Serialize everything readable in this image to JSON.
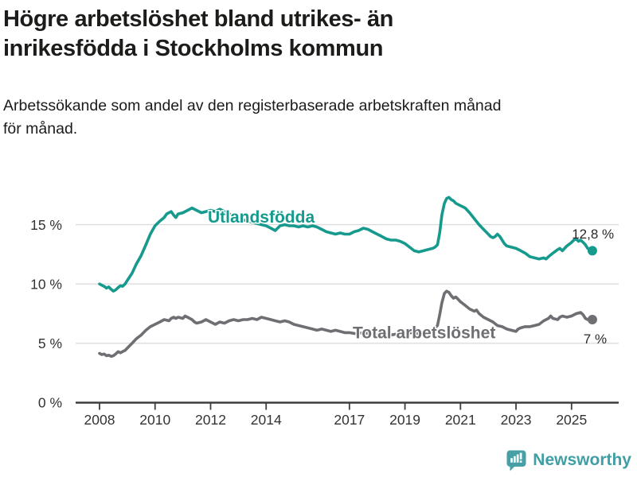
{
  "header": {
    "title_line1": "Högre arbetslöshet bland utrikes- än",
    "title_line2": "inrikesfödda i Stockholms kommun",
    "subtitle_line1": "Arbetssökande som andel av den registerbaserade arbetskraften månad",
    "subtitle_line2": "för månad."
  },
  "footer": {
    "brand": "Newsworthy",
    "logo_icon": "bar-chart-speech-bubble-icon",
    "brand_color": "#3f9fa4"
  },
  "colors": {
    "utlandsfodda": "#169a8d",
    "total": "#6e6e73",
    "grid": "#dcdcdc",
    "axis": "#3d3d3d",
    "tick_text": "#333333",
    "value_text": "#2a2a2a",
    "background": "#ffffff"
  },
  "chart_data": {
    "type": "line",
    "title": "Högre arbetslöshet bland utrikes- än inrikesfödda i Stockholms kommun",
    "subtitle": "Arbetssökande som andel av den registerbaserade arbetskraften månad för månad.",
    "xlabel": "",
    "ylabel": "%",
    "grid": true,
    "legend_position": "inline-labels",
    "xlim": [
      2007.1,
      2026.7
    ],
    "ylim": [
      0,
      18
    ],
    "yticks": [
      {
        "value": 0,
        "label": "0 %"
      },
      {
        "value": 5,
        "label": "5 %"
      },
      {
        "value": 10,
        "label": "10 %"
      },
      {
        "value": 15,
        "label": "15 %"
      }
    ],
    "xticks": [
      {
        "value": 2008,
        "label": "2008"
      },
      {
        "value": 2010,
        "label": "2010"
      },
      {
        "value": 2012,
        "label": "2012"
      },
      {
        "value": 2014,
        "label": "2014"
      },
      {
        "value": 2017,
        "label": "2017"
      },
      {
        "value": 2019,
        "label": "2019"
      },
      {
        "value": 2021,
        "label": "2021"
      },
      {
        "value": 2023,
        "label": "2023"
      },
      {
        "value": 2025,
        "label": "2025"
      }
    ],
    "series": [
      {
        "name": "Utlandsfödda",
        "color": "#169a8d",
        "end_dot": true,
        "end_value_label": {
          "text": "12,8 %",
          "year": 2026.53,
          "pct": 13.83,
          "anchor": "end"
        },
        "name_label": {
          "year": 2011.9,
          "pct": 15.17,
          "anchor": "start"
        },
        "points": [
          [
            2008.0,
            10.0
          ],
          [
            2008.08,
            9.9
          ],
          [
            2008.17,
            9.8
          ],
          [
            2008.25,
            9.65
          ],
          [
            2008.33,
            9.75
          ],
          [
            2008.42,
            9.55
          ],
          [
            2008.5,
            9.4
          ],
          [
            2008.58,
            9.5
          ],
          [
            2008.67,
            9.7
          ],
          [
            2008.75,
            9.85
          ],
          [
            2008.83,
            9.8
          ],
          [
            2008.92,
            10.0
          ],
          [
            2009.0,
            10.3
          ],
          [
            2009.17,
            10.9
          ],
          [
            2009.33,
            11.7
          ],
          [
            2009.5,
            12.4
          ],
          [
            2009.67,
            13.3
          ],
          [
            2009.83,
            14.2
          ],
          [
            2010.0,
            14.9
          ],
          [
            2010.17,
            15.3
          ],
          [
            2010.33,
            15.6
          ],
          [
            2010.42,
            15.9
          ],
          [
            2010.5,
            16.0
          ],
          [
            2010.58,
            16.1
          ],
          [
            2010.67,
            15.8
          ],
          [
            2010.75,
            15.6
          ],
          [
            2010.83,
            15.9
          ],
          [
            2011.0,
            16.0
          ],
          [
            2011.17,
            16.2
          ],
          [
            2011.33,
            16.4
          ],
          [
            2011.5,
            16.2
          ],
          [
            2011.67,
            16.0
          ],
          [
            2011.83,
            16.1
          ],
          [
            2012.0,
            16.2
          ],
          [
            2012.17,
            16.1
          ],
          [
            2012.33,
            16.3
          ],
          [
            2012.5,
            16.1
          ],
          [
            2012.67,
            15.9
          ],
          [
            2012.83,
            15.7
          ],
          [
            2013.0,
            15.6
          ],
          [
            2013.17,
            15.4
          ],
          [
            2013.33,
            15.3
          ],
          [
            2013.5,
            15.2
          ],
          [
            2013.67,
            15.1
          ],
          [
            2013.83,
            15.0
          ],
          [
            2014.0,
            14.9
          ],
          [
            2014.17,
            14.7
          ],
          [
            2014.33,
            14.5
          ],
          [
            2014.5,
            14.9
          ],
          [
            2014.67,
            15.0
          ],
          [
            2014.83,
            14.9
          ],
          [
            2015.0,
            14.9
          ],
          [
            2015.17,
            14.8
          ],
          [
            2015.33,
            14.9
          ],
          [
            2015.5,
            14.8
          ],
          [
            2015.67,
            14.9
          ],
          [
            2015.83,
            14.8
          ],
          [
            2016.0,
            14.6
          ],
          [
            2016.17,
            14.4
          ],
          [
            2016.33,
            14.3
          ],
          [
            2016.5,
            14.2
          ],
          [
            2016.67,
            14.3
          ],
          [
            2016.83,
            14.2
          ],
          [
            2017.0,
            14.2
          ],
          [
            2017.17,
            14.4
          ],
          [
            2017.33,
            14.5
          ],
          [
            2017.5,
            14.7
          ],
          [
            2017.67,
            14.6
          ],
          [
            2017.83,
            14.4
          ],
          [
            2018.0,
            14.2
          ],
          [
            2018.17,
            14.0
          ],
          [
            2018.33,
            13.8
          ],
          [
            2018.5,
            13.7
          ],
          [
            2018.67,
            13.7
          ],
          [
            2018.83,
            13.6
          ],
          [
            2019.0,
            13.4
          ],
          [
            2019.17,
            13.1
          ],
          [
            2019.33,
            12.8
          ],
          [
            2019.5,
            12.7
          ],
          [
            2019.67,
            12.8
          ],
          [
            2019.83,
            12.9
          ],
          [
            2020.0,
            13.0
          ],
          [
            2020.08,
            13.1
          ],
          [
            2020.17,
            13.3
          ],
          [
            2020.25,
            14.3
          ],
          [
            2020.33,
            15.8
          ],
          [
            2020.42,
            16.8
          ],
          [
            2020.5,
            17.2
          ],
          [
            2020.58,
            17.3
          ],
          [
            2020.67,
            17.1
          ],
          [
            2020.75,
            17.0
          ],
          [
            2020.83,
            16.8
          ],
          [
            2021.0,
            16.6
          ],
          [
            2021.17,
            16.4
          ],
          [
            2021.33,
            16.0
          ],
          [
            2021.5,
            15.5
          ],
          [
            2021.67,
            15.0
          ],
          [
            2021.83,
            14.6
          ],
          [
            2022.0,
            14.2
          ],
          [
            2022.08,
            14.0
          ],
          [
            2022.17,
            13.9
          ],
          [
            2022.25,
            14.0
          ],
          [
            2022.33,
            14.2
          ],
          [
            2022.42,
            14.0
          ],
          [
            2022.5,
            13.7
          ],
          [
            2022.58,
            13.4
          ],
          [
            2022.67,
            13.2
          ],
          [
            2022.83,
            13.1
          ],
          [
            2023.0,
            13.0
          ],
          [
            2023.17,
            12.8
          ],
          [
            2023.33,
            12.6
          ],
          [
            2023.5,
            12.3
          ],
          [
            2023.67,
            12.2
          ],
          [
            2023.83,
            12.1
          ],
          [
            2024.0,
            12.2
          ],
          [
            2024.08,
            12.1
          ],
          [
            2024.17,
            12.3
          ],
          [
            2024.33,
            12.6
          ],
          [
            2024.5,
            12.9
          ],
          [
            2024.58,
            13.0
          ],
          [
            2024.67,
            12.8
          ],
          [
            2024.75,
            13.0
          ],
          [
            2024.83,
            13.2
          ],
          [
            2025.0,
            13.5
          ],
          [
            2025.08,
            13.7
          ],
          [
            2025.17,
            13.8
          ],
          [
            2025.25,
            13.6
          ],
          [
            2025.33,
            13.7
          ],
          [
            2025.42,
            13.5
          ],
          [
            2025.5,
            13.3
          ],
          [
            2025.58,
            13.0
          ],
          [
            2025.75,
            12.8
          ]
        ]
      },
      {
        "name": "Total arbetslöshet",
        "color": "#6e6e73",
        "end_dot": true,
        "end_value_label": {
          "text": "7 %",
          "year": 2026.27,
          "pct": 5.0,
          "anchor": "end"
        },
        "name_label": {
          "year": 2017.12,
          "pct": 5.43,
          "anchor": "start"
        },
        "points": [
          [
            2008.0,
            4.15
          ],
          [
            2008.08,
            4.05
          ],
          [
            2008.17,
            4.1
          ],
          [
            2008.25,
            3.95
          ],
          [
            2008.33,
            4.0
          ],
          [
            2008.42,
            3.9
          ],
          [
            2008.5,
            3.95
          ],
          [
            2008.58,
            4.1
          ],
          [
            2008.67,
            4.3
          ],
          [
            2008.75,
            4.2
          ],
          [
            2008.83,
            4.3
          ],
          [
            2008.92,
            4.4
          ],
          [
            2009.0,
            4.6
          ],
          [
            2009.17,
            5.0
          ],
          [
            2009.33,
            5.4
          ],
          [
            2009.5,
            5.7
          ],
          [
            2009.67,
            6.1
          ],
          [
            2009.83,
            6.4
          ],
          [
            2010.0,
            6.6
          ],
          [
            2010.17,
            6.8
          ],
          [
            2010.33,
            7.0
          ],
          [
            2010.5,
            6.9
          ],
          [
            2010.58,
            7.1
          ],
          [
            2010.67,
            7.2
          ],
          [
            2010.75,
            7.1
          ],
          [
            2010.83,
            7.2
          ],
          [
            2011.0,
            7.1
          ],
          [
            2011.08,
            7.3
          ],
          [
            2011.17,
            7.2
          ],
          [
            2011.33,
            7.0
          ],
          [
            2011.42,
            6.8
          ],
          [
            2011.5,
            6.7
          ],
          [
            2011.67,
            6.8
          ],
          [
            2011.83,
            7.0
          ],
          [
            2012.0,
            6.8
          ],
          [
            2012.17,
            6.6
          ],
          [
            2012.33,
            6.8
          ],
          [
            2012.5,
            6.7
          ],
          [
            2012.67,
            6.9
          ],
          [
            2012.83,
            7.0
          ],
          [
            2013.0,
            6.9
          ],
          [
            2013.17,
            7.0
          ],
          [
            2013.33,
            7.0
          ],
          [
            2013.5,
            7.1
          ],
          [
            2013.67,
            7.0
          ],
          [
            2013.83,
            7.2
          ],
          [
            2014.0,
            7.1
          ],
          [
            2014.17,
            7.0
          ],
          [
            2014.33,
            6.9
          ],
          [
            2014.5,
            6.8
          ],
          [
            2014.67,
            6.9
          ],
          [
            2014.83,
            6.8
          ],
          [
            2015.0,
            6.6
          ],
          [
            2015.17,
            6.5
          ],
          [
            2015.33,
            6.4
          ],
          [
            2015.5,
            6.3
          ],
          [
            2015.67,
            6.2
          ],
          [
            2015.83,
            6.1
          ],
          [
            2016.0,
            6.2
          ],
          [
            2016.17,
            6.1
          ],
          [
            2016.33,
            6.0
          ],
          [
            2016.5,
            6.1
          ],
          [
            2016.67,
            6.0
          ],
          [
            2016.83,
            5.9
          ],
          [
            2017.0,
            5.9
          ],
          [
            2017.25,
            5.8
          ],
          [
            2017.5,
            5.9
          ],
          [
            2017.75,
            5.8
          ],
          [
            2018.0,
            5.7
          ],
          [
            2018.25,
            5.8
          ],
          [
            2018.5,
            5.7
          ],
          [
            2018.75,
            5.8
          ],
          [
            2019.0,
            5.8
          ],
          [
            2019.25,
            5.9
          ],
          [
            2019.5,
            5.8
          ],
          [
            2019.67,
            5.9
          ],
          [
            2019.83,
            6.0
          ],
          [
            2020.0,
            6.1
          ],
          [
            2020.17,
            6.5
          ],
          [
            2020.25,
            7.4
          ],
          [
            2020.33,
            8.4
          ],
          [
            2020.42,
            9.2
          ],
          [
            2020.5,
            9.4
          ],
          [
            2020.58,
            9.3
          ],
          [
            2020.67,
            9.0
          ],
          [
            2020.75,
            8.8
          ],
          [
            2020.83,
            8.9
          ],
          [
            2020.92,
            8.7
          ],
          [
            2021.0,
            8.5
          ],
          [
            2021.17,
            8.2
          ],
          [
            2021.33,
            7.9
          ],
          [
            2021.5,
            7.7
          ],
          [
            2021.58,
            7.8
          ],
          [
            2021.67,
            7.5
          ],
          [
            2021.83,
            7.2
          ],
          [
            2022.0,
            7.0
          ],
          [
            2022.17,
            6.8
          ],
          [
            2022.33,
            6.5
          ],
          [
            2022.5,
            6.4
          ],
          [
            2022.67,
            6.2
          ],
          [
            2022.83,
            6.1
          ],
          [
            2023.0,
            6.0
          ],
          [
            2023.08,
            6.2
          ],
          [
            2023.17,
            6.3
          ],
          [
            2023.33,
            6.4
          ],
          [
            2023.5,
            6.4
          ],
          [
            2023.67,
            6.5
          ],
          [
            2023.83,
            6.6
          ],
          [
            2024.0,
            6.9
          ],
          [
            2024.17,
            7.1
          ],
          [
            2024.25,
            7.3
          ],
          [
            2024.33,
            7.1
          ],
          [
            2024.5,
            7.0
          ],
          [
            2024.58,
            7.2
          ],
          [
            2024.67,
            7.3
          ],
          [
            2024.83,
            7.2
          ],
          [
            2025.0,
            7.3
          ],
          [
            2025.17,
            7.5
          ],
          [
            2025.33,
            7.6
          ],
          [
            2025.42,
            7.4
          ],
          [
            2025.5,
            7.1
          ],
          [
            2025.58,
            7.0
          ],
          [
            2025.75,
            7.0
          ]
        ]
      }
    ]
  }
}
